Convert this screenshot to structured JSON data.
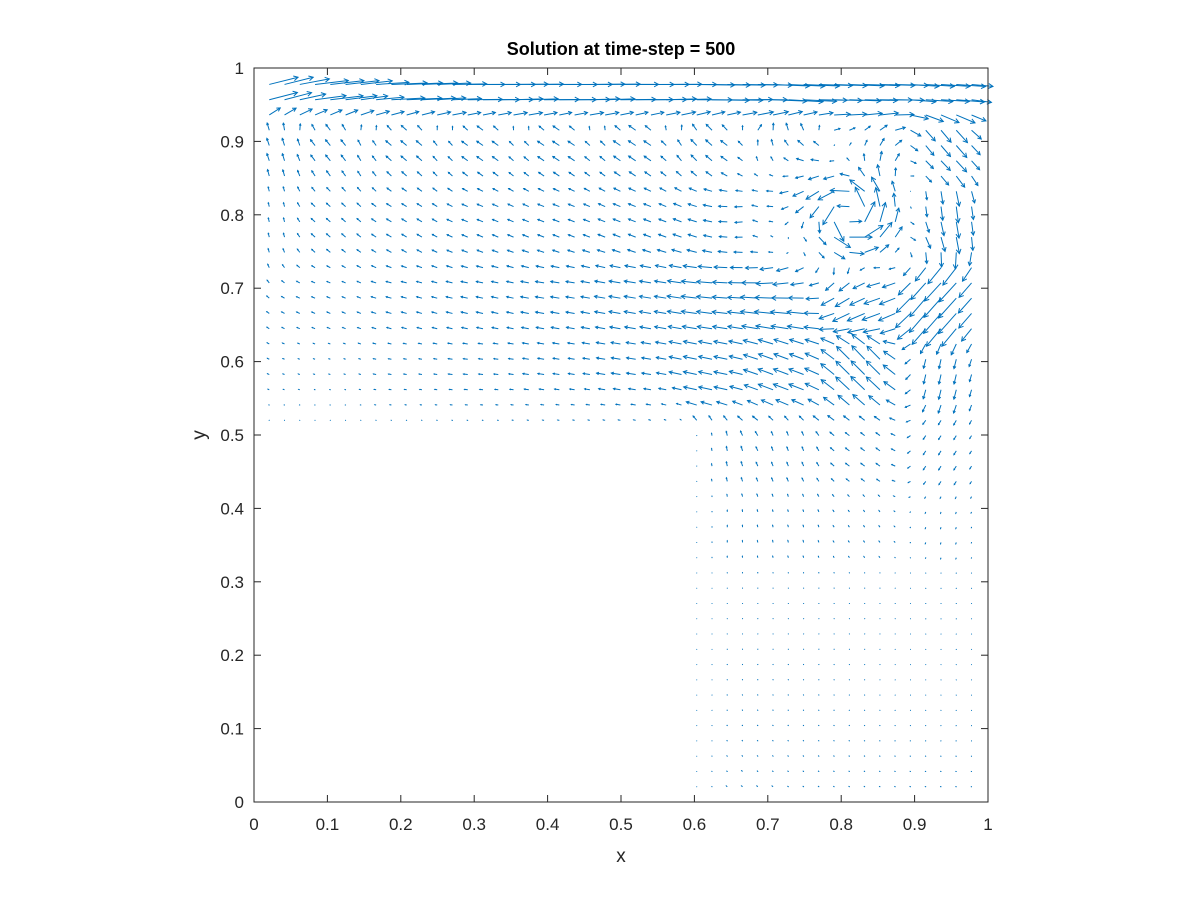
{
  "chart_data": {
    "type": "quiver",
    "title": "Solution at time-step = 500",
    "xlabel": "x",
    "ylabel": "y",
    "xlim": [
      0,
      1
    ],
    "ylim": [
      0,
      1
    ],
    "xticks": [
      "0",
      "0.1",
      "0.2",
      "0.3",
      "0.4",
      "0.5",
      "0.6",
      "0.7",
      "0.8",
      "0.9",
      "1"
    ],
    "yticks": [
      "0",
      "0.1",
      "0.2",
      "0.3",
      "0.4",
      "0.5",
      "0.6",
      "0.7",
      "0.8",
      "0.9",
      "1"
    ],
    "grid": false,
    "box": true,
    "domain": "L-shaped cavity: full region minus the lower-left square x in [0, 0.6], y in [0, 0.5]",
    "lid_velocity": 1.0,
    "vortex_center": [
      0.81,
      0.8
    ],
    "grid_spacing": 0.0208,
    "series_color": "#0072BD",
    "vectors": [
      {
        "x": 0.0208,
        "y": 0.9792,
        "u": 0.6,
        "v": 0.15
      },
      {
        "x": 0.1042,
        "y": 0.9792,
        "u": 0.7,
        "v": 0.08
      },
      {
        "x": 0.2083,
        "y": 0.9792,
        "u": 0.75,
        "v": 0.03
      },
      {
        "x": 0.3125,
        "y": 0.9792,
        "u": 0.78,
        "v": 0.0
      },
      {
        "x": 0.4167,
        "y": 0.9792,
        "u": 0.79,
        "v": 0.0
      },
      {
        "x": 0.5208,
        "y": 0.9792,
        "u": 0.8,
        "v": 0.0
      },
      {
        "x": 0.625,
        "y": 0.9792,
        "u": 0.8,
        "v": -0.01
      },
      {
        "x": 0.7292,
        "y": 0.9792,
        "u": 0.79,
        "v": -0.02
      },
      {
        "x": 0.8333,
        "y": 0.9792,
        "u": 0.78,
        "v": -0.03
      },
      {
        "x": 0.9375,
        "y": 0.9792,
        "u": 0.62,
        "v": -0.05
      },
      {
        "x": 0.0208,
        "y": 0.8958,
        "u": -0.05,
        "v": 0.15
      },
      {
        "x": 0.1042,
        "y": 0.8958,
        "u": -0.1,
        "v": 0.12
      },
      {
        "x": 0.2083,
        "y": 0.8958,
        "u": -0.12,
        "v": 0.1
      },
      {
        "x": 0.3125,
        "y": 0.8958,
        "u": -0.13,
        "v": 0.09
      },
      {
        "x": 0.4167,
        "y": 0.8958,
        "u": -0.14,
        "v": 0.09
      },
      {
        "x": 0.5208,
        "y": 0.8958,
        "u": -0.15,
        "v": 0.1
      },
      {
        "x": 0.625,
        "y": 0.8958,
        "u": -0.12,
        "v": 0.14
      },
      {
        "x": 0.7292,
        "y": 0.8958,
        "u": 0.05,
        "v": 0.22
      },
      {
        "x": 0.8333,
        "y": 0.8958,
        "u": 0.3,
        "v": 0.05
      },
      {
        "x": 0.9375,
        "y": 0.8958,
        "u": 0.25,
        "v": -0.3
      },
      {
        "x": 0.0208,
        "y": 0.7917,
        "u": -0.02,
        "v": 0.08
      },
      {
        "x": 0.1042,
        "y": 0.7917,
        "u": -0.08,
        "v": 0.07
      },
      {
        "x": 0.2083,
        "y": 0.7917,
        "u": -0.1,
        "v": 0.06
      },
      {
        "x": 0.3125,
        "y": 0.7917,
        "u": -0.12,
        "v": 0.05
      },
      {
        "x": 0.4167,
        "y": 0.7917,
        "u": -0.13,
        "v": 0.05
      },
      {
        "x": 0.5208,
        "y": 0.7917,
        "u": -0.15,
        "v": 0.06
      },
      {
        "x": 0.625,
        "y": 0.7917,
        "u": -0.18,
        "v": 0.08
      },
      {
        "x": 0.7292,
        "y": 0.7917,
        "u": -0.1,
        "v": 0.25
      },
      {
        "x": 0.8333,
        "y": 0.7917,
        "u": 0.02,
        "v": -0.02
      },
      {
        "x": 0.9375,
        "y": 0.7917,
        "u": 0.05,
        "v": -0.45
      },
      {
        "x": 0.1042,
        "y": 0.6875,
        "u": -0.07,
        "v": 0.03
      },
      {
        "x": 0.2083,
        "y": 0.6875,
        "u": -0.11,
        "v": 0.03
      },
      {
        "x": 0.3125,
        "y": 0.6875,
        "u": -0.14,
        "v": 0.03
      },
      {
        "x": 0.4167,
        "y": 0.6875,
        "u": -0.18,
        "v": 0.03
      },
      {
        "x": 0.5208,
        "y": 0.6875,
        "u": -0.24,
        "v": 0.04
      },
      {
        "x": 0.625,
        "y": 0.6875,
        "u": -0.33,
        "v": 0.05
      },
      {
        "x": 0.7292,
        "y": 0.6875,
        "u": -0.45,
        "v": 0.08
      },
      {
        "x": 0.8333,
        "y": 0.6875,
        "u": -0.5,
        "v": -0.18
      },
      {
        "x": 0.9375,
        "y": 0.6875,
        "u": -0.4,
        "v": -0.45
      },
      {
        "x": 0.1042,
        "y": 0.5833,
        "u": -0.03,
        "v": 0.01
      },
      {
        "x": 0.2083,
        "y": 0.5833,
        "u": -0.06,
        "v": 0.01
      },
      {
        "x": 0.3125,
        "y": 0.5833,
        "u": -0.09,
        "v": 0.01
      },
      {
        "x": 0.4167,
        "y": 0.5833,
        "u": -0.13,
        "v": 0.02
      },
      {
        "x": 0.5208,
        "y": 0.5833,
        "u": -0.19,
        "v": 0.03
      },
      {
        "x": 0.625,
        "y": 0.5833,
        "u": -0.28,
        "v": 0.06
      },
      {
        "x": 0.7292,
        "y": 0.5833,
        "u": -0.32,
        "v": 0.12
      },
      {
        "x": 0.8333,
        "y": 0.5833,
        "u": -0.3,
        "v": 0.28
      },
      {
        "x": 0.9375,
        "y": 0.5833,
        "u": -0.05,
        "v": -0.2
      },
      {
        "x": 0.625,
        "y": 0.4792,
        "u": -0.02,
        "v": 0.1
      },
      {
        "x": 0.7292,
        "y": 0.4792,
        "u": -0.03,
        "v": 0.08
      },
      {
        "x": 0.8333,
        "y": 0.4792,
        "u": -0.08,
        "v": 0.06
      },
      {
        "x": 0.9375,
        "y": 0.4792,
        "u": -0.05,
        "v": -0.08
      },
      {
        "x": 0.625,
        "y": 0.375,
        "u": 0.0,
        "v": 0.04
      },
      {
        "x": 0.7292,
        "y": 0.375,
        "u": -0.01,
        "v": 0.04
      },
      {
        "x": 0.8333,
        "y": 0.375,
        "u": -0.02,
        "v": 0.03
      },
      {
        "x": 0.9375,
        "y": 0.375,
        "u": -0.01,
        "v": -0.03
      },
      {
        "x": 0.625,
        "y": 0.2708,
        "u": 0.0,
        "v": 0.01
      },
      {
        "x": 0.7292,
        "y": 0.2708,
        "u": 0.0,
        "v": 0.01
      },
      {
        "x": 0.8333,
        "y": 0.2708,
        "u": 0.0,
        "v": 0.01
      },
      {
        "x": 0.9375,
        "y": 0.2708,
        "u": 0.0,
        "v": -0.01
      }
    ]
  }
}
